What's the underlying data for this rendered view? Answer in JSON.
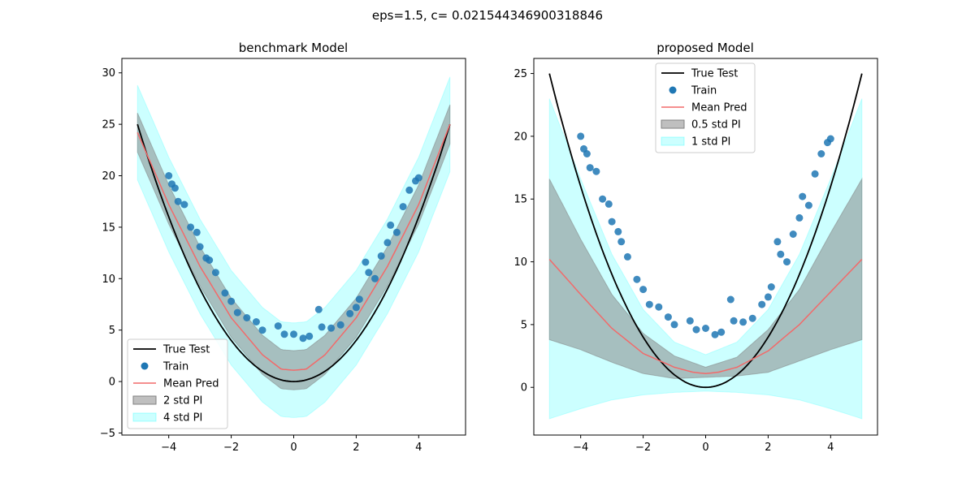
{
  "figure": {
    "suptitle": "eps=1.5, c= 0.021544346900318846",
    "colors": {
      "true_test": "#000000",
      "train": "#1f77b4",
      "mean_pred": "#f26a6a",
      "std_inner": "#808080",
      "std_outer": "#00ffff"
    }
  },
  "chart_data": [
    {
      "type": "line",
      "title": "benchmark Model",
      "xlim": [
        -5.5,
        5.5
      ],
      "ylim": [
        -5.2,
        31.4
      ],
      "xticks": [
        -4,
        -2,
        0,
        2,
        4
      ],
      "yticks": [
        -5,
        0,
        5,
        10,
        15,
        20,
        25,
        30
      ],
      "grid": false,
      "legend_position": "lower-left",
      "series": [
        {
          "name": "True Test",
          "kind": "line",
          "formula": "y = x^2",
          "x_range": [
            -5,
            5
          ]
        },
        {
          "name": "Train",
          "kind": "scatter",
          "points": [
            [
              -4.0,
              20.0
            ],
            [
              -3.9,
              19.2
            ],
            [
              -3.8,
              18.8
            ],
            [
              -3.7,
              17.5
            ],
            [
              -3.5,
              17.2
            ],
            [
              -3.3,
              15.0
            ],
            [
              -3.1,
              14.5
            ],
            [
              -3.0,
              13.1
            ],
            [
              -2.8,
              12.0
            ],
            [
              -2.7,
              11.8
            ],
            [
              -2.5,
              10.6
            ],
            [
              -2.2,
              8.6
            ],
            [
              -2.0,
              7.8
            ],
            [
              -1.8,
              6.7
            ],
            [
              -1.5,
              6.2
            ],
            [
              -1.2,
              5.8
            ],
            [
              -1.0,
              5.0
            ],
            [
              -0.5,
              5.4
            ],
            [
              -0.3,
              4.6
            ],
            [
              0.0,
              4.6
            ],
            [
              0.3,
              4.2
            ],
            [
              0.5,
              4.4
            ],
            [
              0.8,
              7.0
            ],
            [
              0.9,
              5.3
            ],
            [
              1.2,
              5.2
            ],
            [
              1.5,
              5.5
            ],
            [
              1.8,
              6.6
            ],
            [
              2.0,
              7.2
            ],
            [
              2.1,
              8.0
            ],
            [
              2.3,
              11.6
            ],
            [
              2.4,
              10.6
            ],
            [
              2.6,
              10.0
            ],
            [
              2.8,
              12.2
            ],
            [
              3.0,
              13.5
            ],
            [
              3.1,
              15.2
            ],
            [
              3.3,
              14.5
            ],
            [
              3.5,
              17.0
            ],
            [
              3.7,
              18.6
            ],
            [
              3.9,
              19.5
            ],
            [
              4.0,
              19.8
            ]
          ]
        },
        {
          "name": "Mean Pred",
          "kind": "line",
          "x": [
            -5,
            -4,
            -3,
            -2,
            -1,
            -0.4,
            0,
            0.4,
            1,
            2,
            3,
            4,
            5
          ],
          "y": [
            24.2,
            17.2,
            11.2,
            6.2,
            2.6,
            1.2,
            1.1,
            1.2,
            2.6,
            6.2,
            11.2,
            17.2,
            25.0
          ]
        },
        {
          "name": "2 std PI",
          "kind": "band",
          "half_width": 1.9
        },
        {
          "name": "4 std PI",
          "kind": "band",
          "half_width": 4.6
        }
      ],
      "legend": [
        "True Test",
        "Train",
        "Mean Pred",
        "2 std PI",
        "4 std PI"
      ]
    },
    {
      "type": "line",
      "title": "proposed Model",
      "xlim": [
        -5.5,
        5.5
      ],
      "ylim": [
        -3.8,
        26.2
      ],
      "xticks": [
        -4,
        -2,
        0,
        2,
        4
      ],
      "yticks": [
        0,
        5,
        10,
        15,
        20,
        25
      ],
      "grid": false,
      "legend_position": "upper-center",
      "series": [
        {
          "name": "True Test",
          "kind": "line",
          "formula": "y = x^2",
          "x_range": [
            -5,
            5
          ]
        },
        {
          "name": "Train",
          "kind": "scatter",
          "points": [
            [
              -4.0,
              20.0
            ],
            [
              -3.9,
              19.0
            ],
            [
              -3.8,
              18.6
            ],
            [
              -3.7,
              17.5
            ],
            [
              -3.5,
              17.2
            ],
            [
              -3.3,
              15.0
            ],
            [
              -3.1,
              14.6
            ],
            [
              -3.0,
              13.2
            ],
            [
              -2.8,
              12.4
            ],
            [
              -2.7,
              11.6
            ],
            [
              -2.5,
              10.4
            ],
            [
              -2.2,
              8.6
            ],
            [
              -2.0,
              7.8
            ],
            [
              -1.8,
              6.6
            ],
            [
              -1.5,
              6.4
            ],
            [
              -1.2,
              5.6
            ],
            [
              -1.0,
              5.0
            ],
            [
              -0.5,
              5.3
            ],
            [
              -0.3,
              4.6
            ],
            [
              0.0,
              4.7
            ],
            [
              0.3,
              4.2
            ],
            [
              0.5,
              4.4
            ],
            [
              0.8,
              7.0
            ],
            [
              0.9,
              5.3
            ],
            [
              1.2,
              5.2
            ],
            [
              1.5,
              5.5
            ],
            [
              1.8,
              6.6
            ],
            [
              2.0,
              7.2
            ],
            [
              2.1,
              8.0
            ],
            [
              2.3,
              11.6
            ],
            [
              2.4,
              10.6
            ],
            [
              2.6,
              10.0
            ],
            [
              2.8,
              12.2
            ],
            [
              3.0,
              13.5
            ],
            [
              3.1,
              15.2
            ],
            [
              3.3,
              14.5
            ],
            [
              3.5,
              17.0
            ],
            [
              3.7,
              18.6
            ],
            [
              3.9,
              19.5
            ],
            [
              4.0,
              19.8
            ]
          ]
        },
        {
          "name": "Mean Pred",
          "kind": "line",
          "x": [
            -5,
            -4,
            -3,
            -2,
            -1,
            -0.4,
            0,
            0.4,
            1,
            2,
            3,
            4,
            5
          ],
          "y": [
            10.2,
            7.4,
            4.7,
            2.7,
            1.6,
            1.2,
            1.1,
            1.2,
            1.6,
            2.9,
            5.0,
            7.6,
            10.2
          ]
        },
        {
          "name": "0.5 std PI",
          "kind": "band",
          "x": [
            -5,
            -4,
            -3,
            -2,
            -1,
            0,
            1,
            2,
            3,
            4,
            5
          ],
          "lower": [
            3.8,
            3.0,
            2.0,
            1.1,
            0.7,
            0.8,
            0.9,
            1.2,
            2.1,
            3.0,
            3.8
          ],
          "upper": [
            16.6,
            11.8,
            7.4,
            4.3,
            2.5,
            1.6,
            2.4,
            4.6,
            7.8,
            12.3,
            16.6
          ]
        },
        {
          "name": "1 std PI",
          "kind": "band",
          "x": [
            -5,
            -4,
            -3,
            -2,
            -1,
            0,
            1,
            2,
            3,
            4,
            5
          ],
          "lower": [
            -2.5,
            -1.7,
            -1.0,
            -0.6,
            -0.4,
            -0.3,
            -0.4,
            -0.6,
            -1.0,
            -1.7,
            -2.5
          ],
          "upper": [
            23.0,
            16.6,
            10.6,
            6.2,
            3.6,
            2.6,
            3.6,
            6.2,
            10.6,
            16.6,
            23.0
          ]
        }
      ],
      "legend": [
        "True Test",
        "Train",
        "Mean Pred",
        "0.5 std PI",
        "1 std PI"
      ]
    }
  ]
}
